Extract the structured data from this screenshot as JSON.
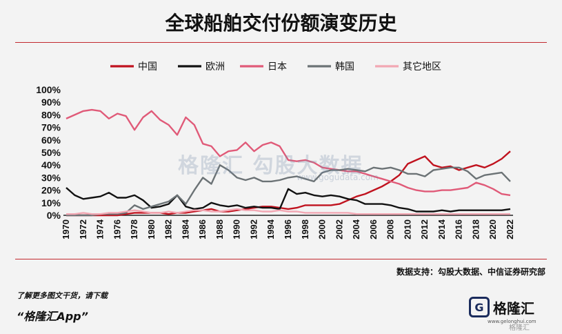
{
  "page": {
    "title": "全球船舶交付份额演变历史",
    "source": "数据支持：勾股大数据、中信证券研究部",
    "promo_line1": "了解更多图文干货，请下载",
    "promo_line2": "“格隆汇App”",
    "logo_text": "格隆汇",
    "logo_sub": "www.gelonghui.com",
    "watermark_bottom": "格隆汇",
    "watermark_text": "格隆汇   勾股大数据",
    "watermark_url": "www.gogudata.com"
  },
  "chart_data": {
    "type": "line",
    "x": [
      1970,
      1971,
      1972,
      1973,
      1974,
      1975,
      1976,
      1977,
      1978,
      1979,
      1980,
      1981,
      1982,
      1983,
      1984,
      1985,
      1986,
      1987,
      1988,
      1989,
      1990,
      1991,
      1992,
      1993,
      1994,
      1995,
      1996,
      1997,
      1998,
      1999,
      2000,
      2001,
      2002,
      2003,
      2004,
      2005,
      2006,
      2007,
      2008,
      2009,
      2010,
      2011,
      2012,
      2013,
      2014,
      2015,
      2016,
      2017,
      2018,
      2019,
      2020,
      2021,
      2022
    ],
    "x_tick_labels": [
      "1970",
      "1972",
      "1974",
      "1976",
      "1978",
      "1980",
      "1982",
      "1984",
      "1986",
      "1988",
      "1990",
      "1992",
      "1994",
      "1996",
      "1998",
      "2000",
      "2002",
      "2004",
      "2006",
      "2008",
      "2010",
      "2012",
      "2014",
      "2016",
      "2018",
      "2020",
      "2022"
    ],
    "y_tick_labels": [
      "0%",
      "10%",
      "20%",
      "30%",
      "40%",
      "50%",
      "60%",
      "70%",
      "80%",
      "90%",
      "100%"
    ],
    "ylim": [
      0,
      100
    ],
    "legend_position": "top",
    "series": [
      {
        "name": "中国",
        "color": "#c0121e",
        "values": [
          0,
          0,
          0,
          0,
          0,
          0,
          0,
          1,
          2,
          2,
          2,
          2,
          1,
          2,
          2,
          3,
          4,
          5,
          3,
          3,
          4,
          5,
          6,
          7,
          7,
          6,
          5,
          6,
          8,
          8,
          8,
          8,
          9,
          12,
          15,
          17,
          20,
          23,
          27,
          32,
          41,
          44,
          47,
          40,
          38,
          39,
          36,
          38,
          40,
          38,
          41,
          45,
          51
        ]
      },
      {
        "name": "欧洲",
        "color": "#111111",
        "values": [
          22,
          16,
          13,
          14,
          15,
          18,
          14,
          14,
          16,
          12,
          6,
          7,
          9,
          16,
          7,
          5,
          6,
          10,
          8,
          7,
          8,
          6,
          7,
          6,
          6,
          5,
          21,
          17,
          18,
          16,
          15,
          16,
          15,
          13,
          12,
          9,
          9,
          9,
          8,
          6,
          5,
          3,
          3,
          3,
          4,
          3,
          4,
          4,
          4,
          4,
          4,
          4,
          5
        ]
      },
      {
        "name": "日本",
        "color": "#e05a78",
        "values": [
          77,
          80,
          83,
          84,
          83,
          77,
          81,
          79,
          68,
          78,
          83,
          76,
          72,
          64,
          78,
          72,
          57,
          55,
          47,
          51,
          52,
          58,
          51,
          56,
          58,
          55,
          44,
          43,
          44,
          42,
          38,
          37,
          36,
          35,
          35,
          33,
          31,
          29,
          27,
          25,
          22,
          20,
          19,
          19,
          20,
          20,
          21,
          22,
          26,
          24,
          21,
          17,
          16
        ]
      },
      {
        "name": "韩国",
        "color": "#6b7275",
        "values": [
          0,
          0,
          0,
          0,
          1,
          1,
          1,
          2,
          8,
          5,
          7,
          9,
          11,
          16,
          9,
          20,
          30,
          25,
          40,
          36,
          30,
          28,
          30,
          27,
          27,
          28,
          30,
          31,
          29,
          27,
          34,
          36,
          36,
          37,
          36,
          35,
          38,
          37,
          38,
          36,
          33,
          33,
          31,
          36,
          37,
          38,
          38,
          35,
          29,
          32,
          33,
          34,
          27
        ]
      },
      {
        "name": "其它地区",
        "color": "#f2a7b3",
        "values": [
          1,
          1,
          2,
          1,
          1,
          2,
          2,
          3,
          4,
          3,
          2,
          2,
          3,
          2,
          3,
          4,
          4,
          3,
          3,
          4,
          5,
          4,
          4,
          3,
          3,
          4,
          3,
          3,
          2,
          2,
          2,
          2,
          2,
          2,
          1,
          1,
          1,
          1,
          1,
          1,
          1,
          1,
          1,
          1,
          1,
          1,
          1,
          1,
          1,
          1,
          1,
          1,
          1
        ]
      }
    ]
  }
}
